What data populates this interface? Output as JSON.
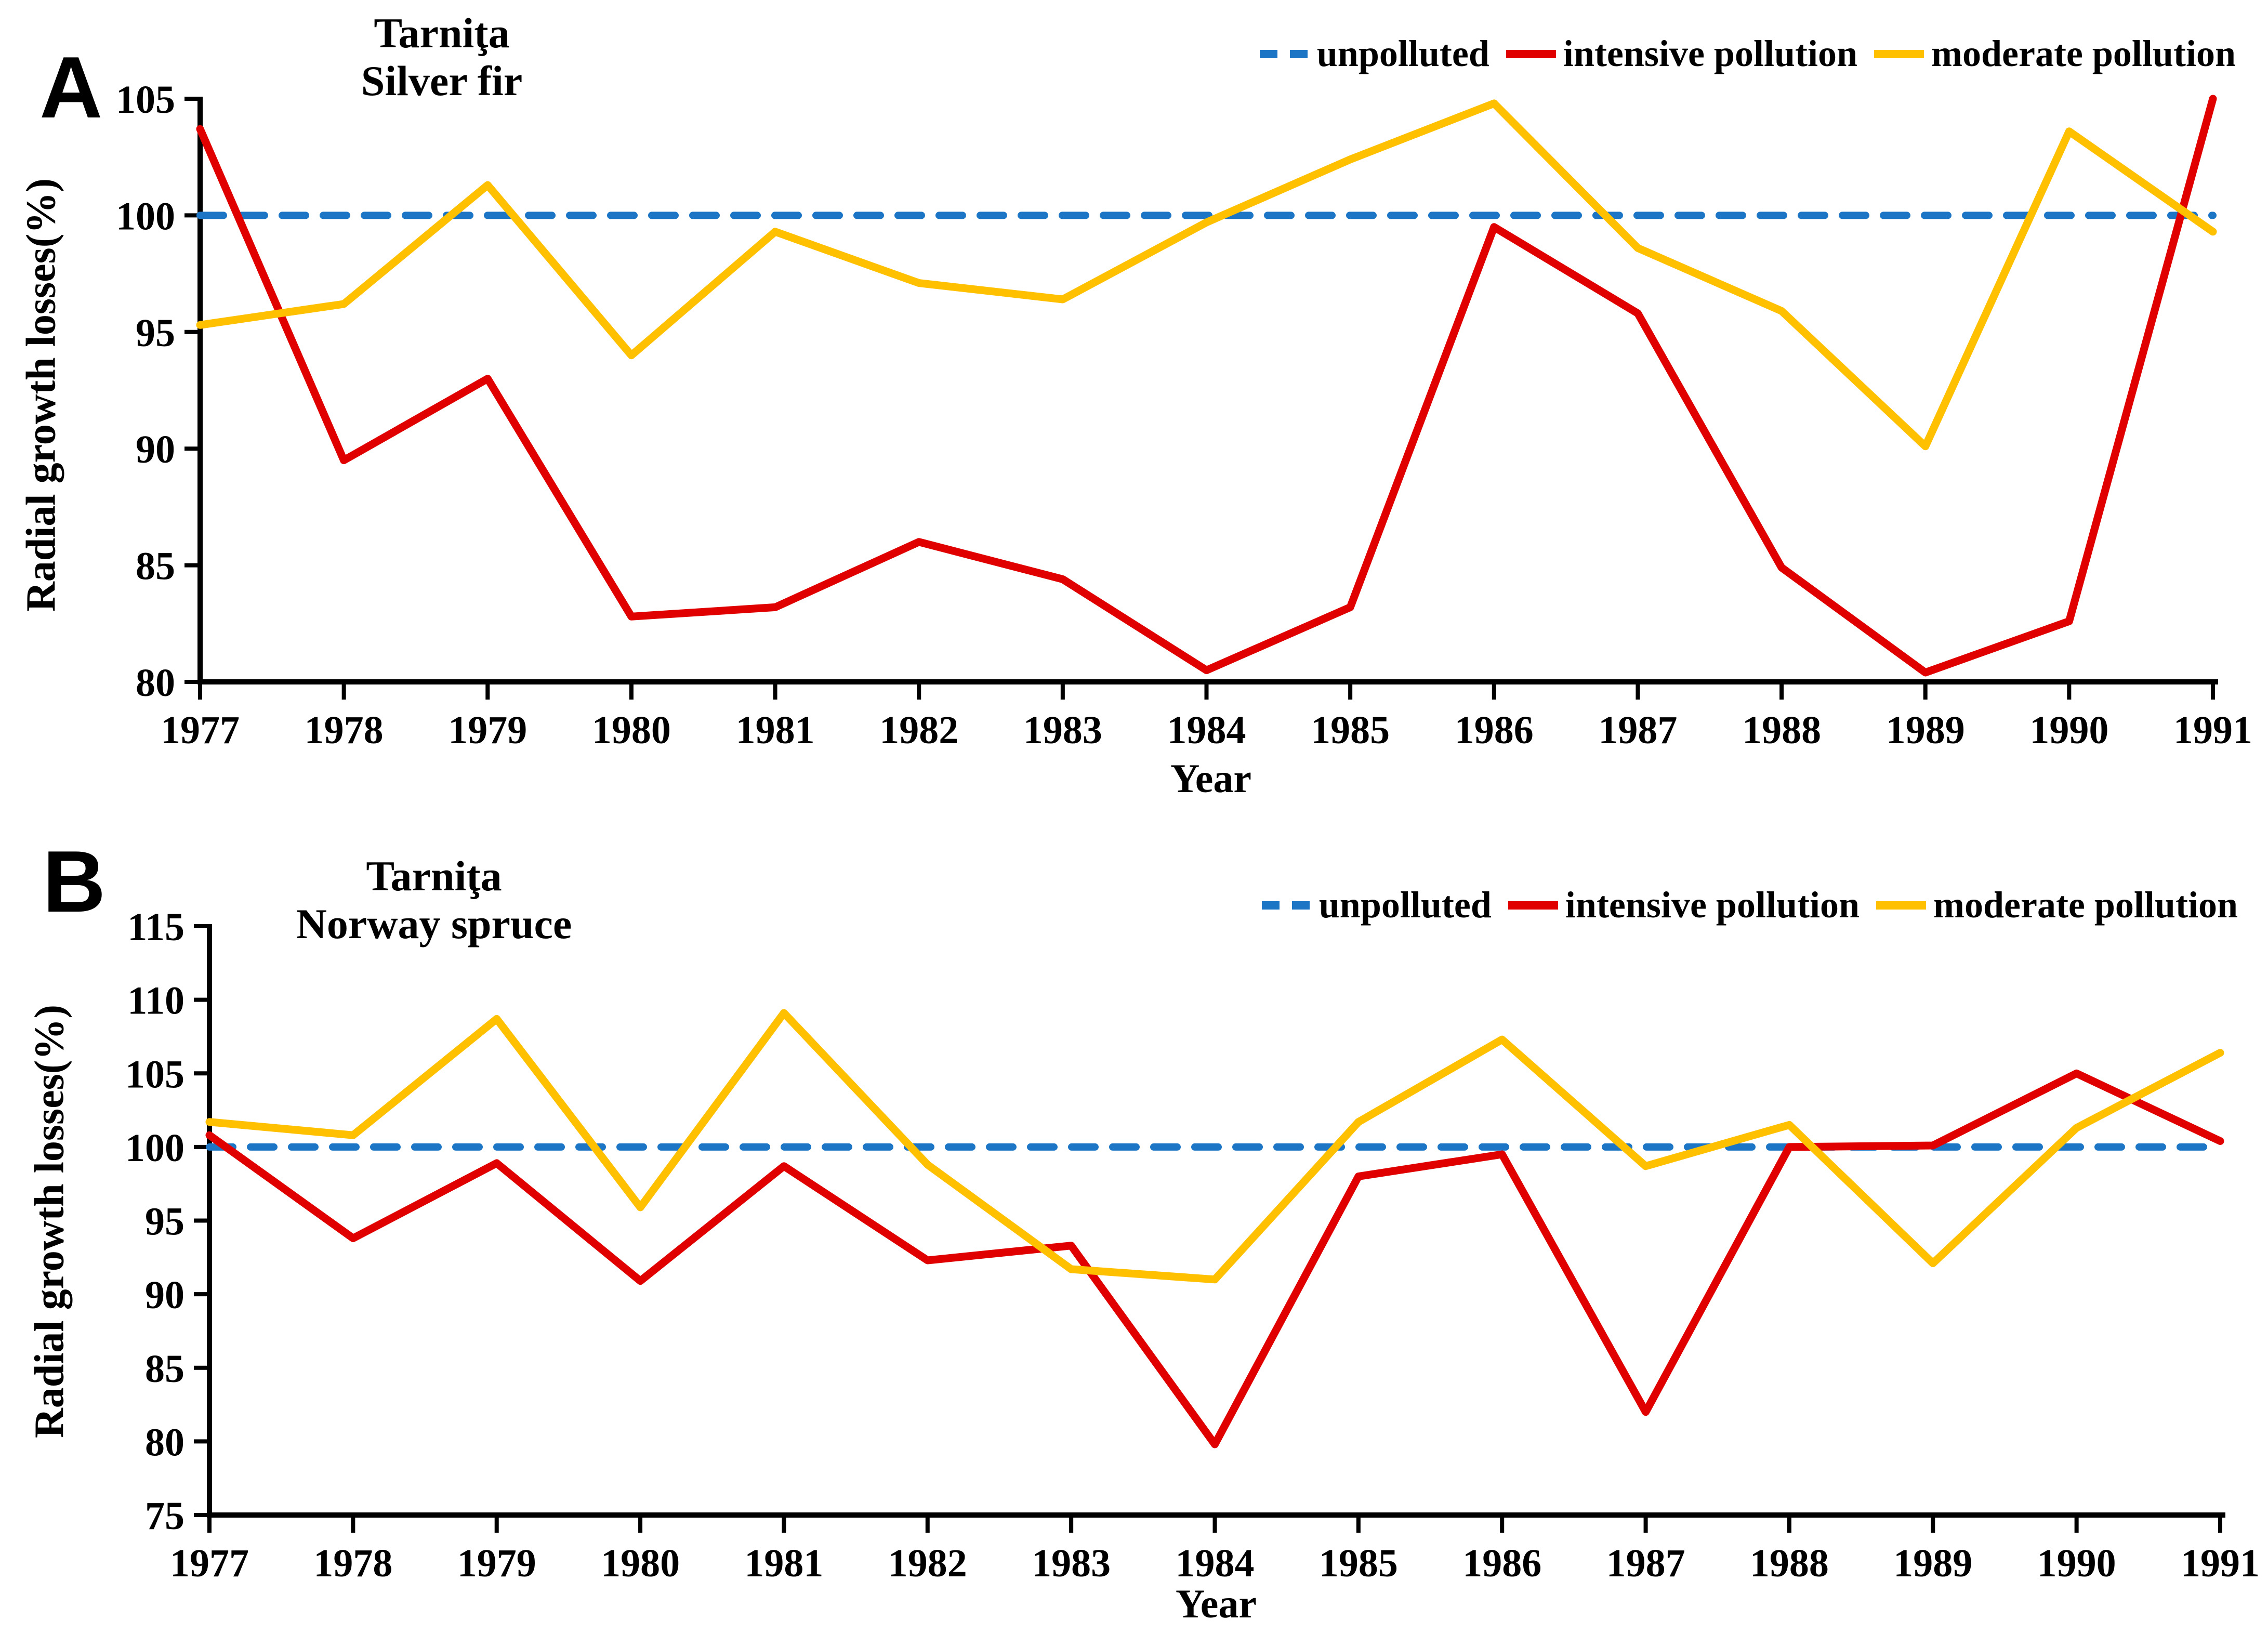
{
  "colors": {
    "unpolluted": "#1C76C5",
    "intensive": "#E00000",
    "moderate": "#FFC000",
    "axis": "#000000"
  },
  "legend": {
    "items": [
      {
        "label": "unpolluted",
        "series": "unpolluted",
        "dashed": true
      },
      {
        "label": "intensive pollution",
        "series": "intensive",
        "dashed": false
      },
      {
        "label": "moderate pollution",
        "series": "moderate",
        "dashed": false
      }
    ]
  },
  "chart_data": [
    {
      "type": "line",
      "panel_label": "A",
      "title_line1": "Tarniţa",
      "title_line2": "Silver fir",
      "xlabel": "Year",
      "ylabel": "Radial growth losses(%)",
      "x": [
        1977,
        1978,
        1979,
        1980,
        1981,
        1982,
        1983,
        1984,
        1985,
        1986,
        1987,
        1988,
        1989,
        1990,
        1991
      ],
      "ylim": [
        80,
        105
      ],
      "yticks": [
        80,
        85,
        90,
        95,
        100,
        105
      ],
      "grid": false,
      "legend_position": "top-right",
      "series": [
        {
          "name": "unpolluted",
          "key": "unpolluted",
          "dashed": true,
          "values": [
            100,
            100,
            100,
            100,
            100,
            100,
            100,
            100,
            100,
            100,
            100,
            100,
            100,
            100,
            100
          ]
        },
        {
          "name": "intensive pollution",
          "key": "intensive",
          "dashed": false,
          "values": [
            103.7,
            89.5,
            93.0,
            82.8,
            83.2,
            86.0,
            84.4,
            80.5,
            83.2,
            99.5,
            95.8,
            84.9,
            80.4,
            82.6,
            105.0
          ]
        },
        {
          "name": "moderate pollution",
          "key": "moderate",
          "dashed": false,
          "values": [
            95.3,
            96.2,
            101.3,
            94.0,
            99.3,
            97.1,
            96.4,
            99.7,
            102.4,
            104.8,
            98.6,
            95.9,
            90.1,
            103.6,
            99.3
          ]
        }
      ]
    },
    {
      "type": "line",
      "panel_label": "B",
      "title_line1": "Tarniţa",
      "title_line2": "Norway spruce",
      "xlabel": "Year",
      "ylabel": "Radial growth losses(%)",
      "x": [
        1977,
        1978,
        1979,
        1980,
        1981,
        1982,
        1983,
        1984,
        1985,
        1986,
        1987,
        1988,
        1989,
        1990,
        1991
      ],
      "ylim": [
        75,
        115
      ],
      "yticks": [
        75,
        80,
        85,
        90,
        95,
        100,
        105,
        110,
        115
      ],
      "grid": false,
      "legend_position": "top-right",
      "series": [
        {
          "name": "unpolluted",
          "key": "unpolluted",
          "dashed": true,
          "values": [
            100,
            100,
            100,
            100,
            100,
            100,
            100,
            100,
            100,
            100,
            100,
            100,
            100,
            100,
            100
          ]
        },
        {
          "name": "intensive pollution",
          "key": "intensive",
          "dashed": false,
          "values": [
            100.8,
            93.8,
            98.9,
            90.9,
            98.7,
            92.3,
            93.3,
            79.8,
            98.0,
            99.5,
            82.0,
            100.0,
            100.1,
            105.0,
            100.4
          ]
        },
        {
          "name": "moderate pollution",
          "key": "moderate",
          "dashed": false,
          "values": [
            101.7,
            100.8,
            108.7,
            95.9,
            109.1,
            98.8,
            91.7,
            91.0,
            101.7,
            107.3,
            98.7,
            101.5,
            92.1,
            101.3,
            106.4
          ]
        }
      ]
    }
  ]
}
